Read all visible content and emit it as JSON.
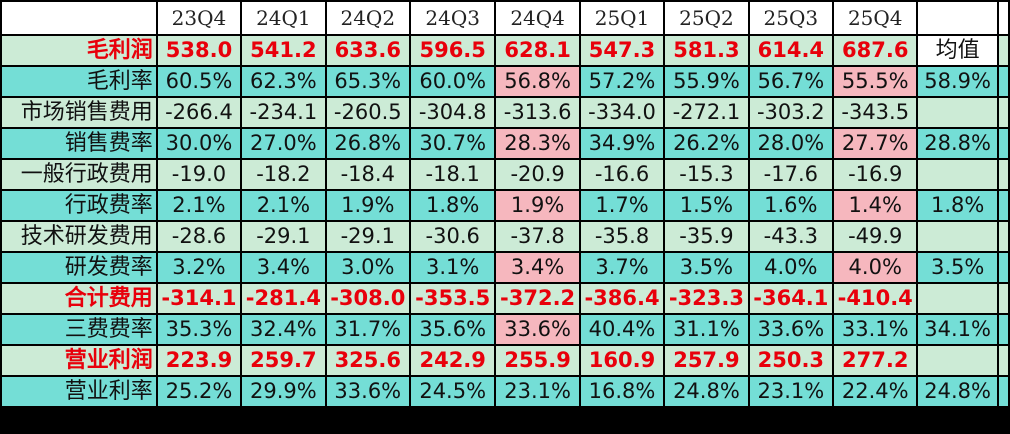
{
  "columns": [
    "23Q4",
    "24Q1",
    "24Q2",
    "24Q3",
    "24Q4",
    "25Q1",
    "25Q2",
    "25Q3",
    "25Q4"
  ],
  "avg_header": "均值",
  "colors": {
    "header_bg": "#ffffff",
    "light_row_bg": "#ccebd6",
    "teal_row_bg": "#74ded6",
    "highlight_bg": "#f6b7be",
    "emphasis_text": "#e8000b"
  },
  "rows": [
    {
      "label": "毛利润",
      "values": [
        "538.0",
        "541.2",
        "633.6",
        "596.5",
        "628.1",
        "547.3",
        "581.3",
        "614.4",
        "687.6"
      ],
      "avg": "",
      "bold": true,
      "bg": "g"
    },
    {
      "label": "毛利率",
      "values": [
        "60.5%",
        "62.3%",
        "65.3%",
        "60.0%",
        "56.8%",
        "57.2%",
        "55.9%",
        "56.7%",
        "55.5%"
      ],
      "avg": "58.9%",
      "bold": false,
      "bg": "c"
    },
    {
      "label": "市场销售费用",
      "values": [
        "-266.4",
        "-234.1",
        "-260.5",
        "-304.8",
        "-313.6",
        "-334.0",
        "-272.1",
        "-303.2",
        "-343.5"
      ],
      "avg": "",
      "bold": false,
      "bg": "g"
    },
    {
      "label": "销售费率",
      "values": [
        "30.0%",
        "27.0%",
        "26.8%",
        "30.7%",
        "28.3%",
        "34.9%",
        "26.2%",
        "28.0%",
        "27.7%"
      ],
      "avg": "28.8%",
      "bold": false,
      "bg": "c"
    },
    {
      "label": "一般行政费用",
      "values": [
        "-19.0",
        "-18.2",
        "-18.4",
        "-18.1",
        "-20.9",
        "-16.6",
        "-15.3",
        "-17.6",
        "-16.9"
      ],
      "avg": "",
      "bold": false,
      "bg": "g"
    },
    {
      "label": "行政费率",
      "values": [
        "2.1%",
        "2.1%",
        "1.9%",
        "1.8%",
        "1.9%",
        "1.7%",
        "1.5%",
        "1.6%",
        "1.4%"
      ],
      "avg": "1.8%",
      "bold": false,
      "bg": "c"
    },
    {
      "label": "技术研发费用",
      "values": [
        "-28.6",
        "-29.1",
        "-29.1",
        "-30.6",
        "-37.8",
        "-35.8",
        "-35.9",
        "-43.3",
        "-49.9"
      ],
      "avg": "",
      "bold": false,
      "bg": "g"
    },
    {
      "label": "研发费率",
      "values": [
        "3.2%",
        "3.4%",
        "3.0%",
        "3.1%",
        "3.4%",
        "3.7%",
        "3.5%",
        "4.0%",
        "4.0%"
      ],
      "avg": "3.5%",
      "bold": false,
      "bg": "c"
    },
    {
      "label": "合计费用",
      "values": [
        "-314.1",
        "-281.4",
        "-308.0",
        "-353.5",
        "-372.2",
        "-386.4",
        "-323.3",
        "-364.1",
        "-410.4"
      ],
      "avg": "",
      "bold": true,
      "bg": "g"
    },
    {
      "label": "三费费率",
      "values": [
        "35.3%",
        "32.4%",
        "31.7%",
        "35.6%",
        "33.6%",
        "40.4%",
        "31.1%",
        "33.6%",
        "33.1%"
      ],
      "avg": "34.1%",
      "bold": false,
      "bg": "c"
    },
    {
      "label": "营业利润",
      "values": [
        "223.9",
        "259.7",
        "325.6",
        "242.9",
        "255.9",
        "160.9",
        "257.9",
        "250.3",
        "277.2"
      ],
      "avg": "",
      "bold": true,
      "bg": "g"
    },
    {
      "label": "营业利率",
      "values": [
        "25.2%",
        "29.9%",
        "33.6%",
        "24.5%",
        "23.1%",
        "16.8%",
        "24.8%",
        "23.1%",
        "22.4%"
      ],
      "avg": "24.8%",
      "bold": false,
      "bg": "c"
    }
  ]
}
